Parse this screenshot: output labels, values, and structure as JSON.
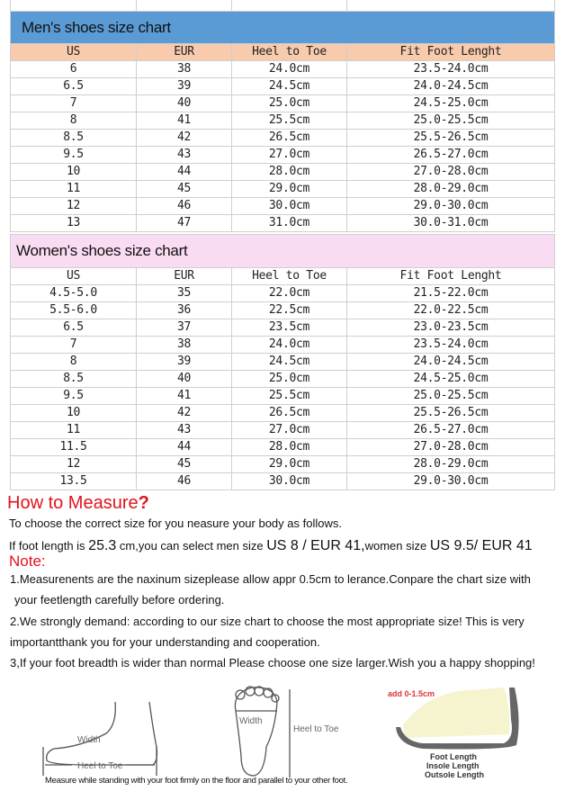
{
  "men": {
    "title": "Men's shoes size chart",
    "headers": [
      "US",
      "EUR",
      "Heel to Toe",
      "Fit Foot Lenght"
    ],
    "rows": [
      [
        "6",
        "38",
        "24.0cm",
        "23.5-24.0cm"
      ],
      [
        "6.5",
        "39",
        "24.5cm",
        "24.0-24.5cm"
      ],
      [
        "7",
        "40",
        "25.0cm",
        "24.5-25.0cm"
      ],
      [
        "8",
        "41",
        "25.5cm",
        "25.0-25.5cm"
      ],
      [
        "8.5",
        "42",
        "26.5cm",
        "25.5-26.5cm"
      ],
      [
        "9.5",
        "43",
        "27.0cm",
        "26.5-27.0cm"
      ],
      [
        "10",
        "44",
        "28.0cm",
        "27.0-28.0cm"
      ],
      [
        "11",
        "45",
        "29.0cm",
        "28.0-29.0cm"
      ],
      [
        "12",
        "46",
        "30.0cm",
        "29.0-30.0cm"
      ],
      [
        "13",
        "47",
        "31.0cm",
        "30.0-31.0cm"
      ]
    ]
  },
  "women": {
    "title": "Women's  shoes size chart",
    "headers": [
      "US",
      "EUR",
      "Heel to Toe",
      "Fit Foot Lenght"
    ],
    "rows": [
      [
        "4.5-5.0",
        "35",
        "22.0cm",
        "21.5-22.0cm"
      ],
      [
        "5.5-6.0",
        "36",
        "22.5cm",
        "22.0-22.5cm"
      ],
      [
        "6.5",
        "37",
        "23.5cm",
        "23.0-23.5cm"
      ],
      [
        "7",
        "38",
        "24.0cm",
        "23.5-24.0cm"
      ],
      [
        "8",
        "39",
        "24.5cm",
        "24.0-24.5cm"
      ],
      [
        "8.5",
        "40",
        "25.0cm",
        "24.5-25.0cm"
      ],
      [
        "9.5",
        "41",
        "25.5cm",
        "25.0-25.5cm"
      ],
      [
        "10",
        "42",
        "26.5cm",
        "25.5-26.5cm"
      ],
      [
        "11",
        "43",
        "27.0cm",
        "26.5-27.0cm"
      ],
      [
        "11.5",
        "44",
        "28.0cm",
        "27.0-28.0cm"
      ],
      [
        "12",
        "45",
        "29.0cm",
        "28.0-29.0cm"
      ],
      [
        "13.5",
        "46",
        "30.0cm",
        "29.0-30.0cm"
      ]
    ]
  },
  "measure": {
    "title": "How to Measure",
    "title_mark": "?",
    "intro": "To choose the correct size for you neasure your body as follows.",
    "example": {
      "a": "If foot length is ",
      "b": "25.3",
      "c": " cm,you can select men size ",
      "d": "US 8 / EUR 41",
      ",": ",",
      "e": "women size ",
      "f": "US 9.5/ EUR 41"
    }
  },
  "note": {
    "title": "Note:",
    "lines": [
      "1.Measurenents are the naxinum sizeplease allow appr 0.5cm to lerance.Conpare the chart size with",
      "your feetlength carefully before ordering.",
      "2.We strongly demand: according to our size chart to choose the most appropriate size! This is very",
      "importantthank you for your understanding and cooperation.",
      "3,If your foot breadth is wider than normal Please choose one size larger.Wish you a happy shopping!"
    ]
  },
  "diagram": {
    "side_width": "Width",
    "side_heel": "Heel to Toe",
    "top_width": "Width",
    "top_heel": "Heel to Toe",
    "add": "add 0-1.5cm",
    "foot_length": "Foot Length",
    "insole_length": "Insole Length",
    "outsole_length": "Outsole Length",
    "caption": "Measure while standing with your foot firmly on the floor and parallel to your other foot."
  }
}
